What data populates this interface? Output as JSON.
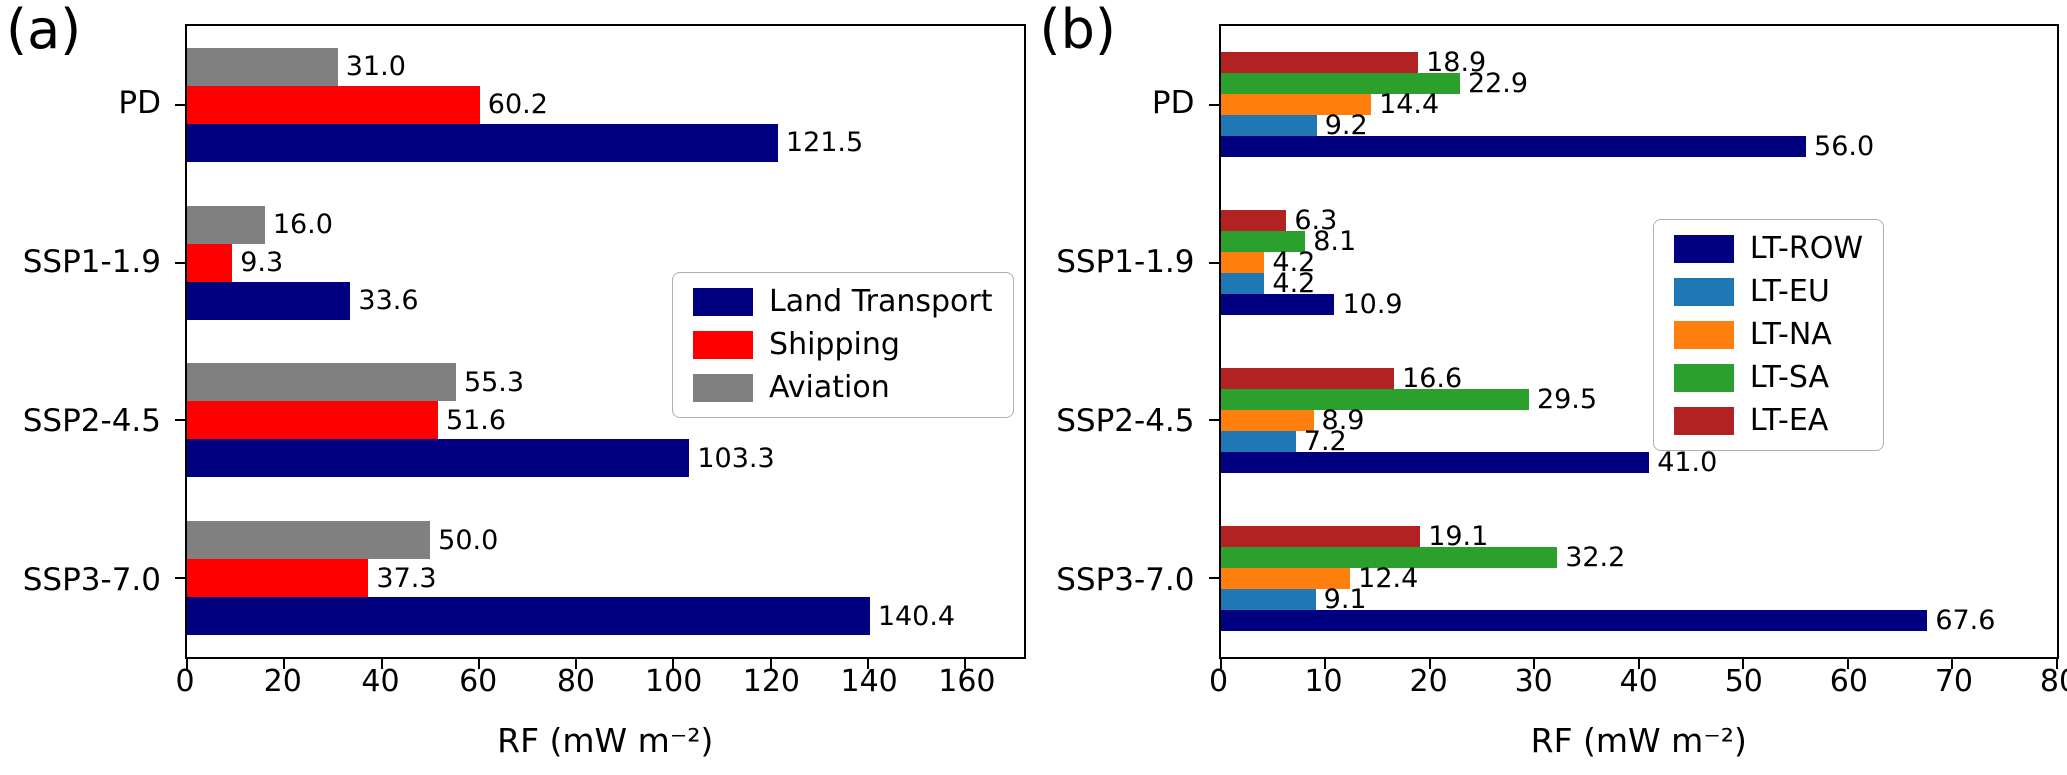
{
  "chart_data": [
    {
      "type": "bar",
      "orientation": "horizontal",
      "panel_label": "(a)",
      "xlabel": "RF (mW m⁻²)",
      "xlim": [
        0,
        172
      ],
      "xticks": [
        0,
        20,
        40,
        60,
        80,
        100,
        120,
        140,
        160
      ],
      "grid": false,
      "categories": [
        "PD",
        "SSP1-1.9",
        "SSP2-4.5",
        "SSP3-7.0"
      ],
      "series": [
        {
          "name": "Aviation",
          "color": "#808080",
          "values": [
            31.0,
            16.0,
            55.3,
            50.0
          ]
        },
        {
          "name": "Shipping",
          "color": "#ff0000",
          "values": [
            60.2,
            9.3,
            51.6,
            37.3
          ]
        },
        {
          "name": "Land Transport",
          "color": "#000080",
          "values": [
            121.5,
            33.6,
            103.3,
            140.4
          ]
        }
      ],
      "legend_position": "center-right-inside",
      "legend": [
        {
          "label": "Land Transport",
          "color": "#000080"
        },
        {
          "label": "Shipping",
          "color": "#ff0000"
        },
        {
          "label": "Aviation",
          "color": "#808080"
        }
      ]
    },
    {
      "type": "bar",
      "orientation": "horizontal",
      "panel_label": "(b)",
      "xlabel": "RF (mW m⁻²)",
      "xlim": [
        0,
        80
      ],
      "xticks": [
        0,
        10,
        20,
        30,
        40,
        50,
        60,
        70,
        80
      ],
      "grid": false,
      "categories": [
        "PD",
        "SSP1-1.9",
        "SSP2-4.5",
        "SSP3-7.0"
      ],
      "series": [
        {
          "name": "LT-EA",
          "color": "#b22222",
          "values": [
            18.9,
            6.3,
            16.6,
            19.1
          ]
        },
        {
          "name": "LT-SA",
          "color": "#2ca02c",
          "values": [
            22.9,
            8.1,
            29.5,
            32.2
          ]
        },
        {
          "name": "LT-NA",
          "color": "#ff7f0e",
          "values": [
            14.4,
            4.2,
            8.9,
            12.4
          ]
        },
        {
          "name": "LT-EU",
          "color": "#1f77b4",
          "values": [
            9.2,
            4.2,
            7.2,
            9.1
          ]
        },
        {
          "name": "LT-ROW",
          "color": "#000080",
          "values": [
            56.0,
            10.9,
            41.0,
            67.6
          ]
        }
      ],
      "legend_position": "upper-right-inside",
      "legend": [
        {
          "label": "LT-ROW",
          "color": "#000080"
        },
        {
          "label": "LT-EU",
          "color": "#1f77b4"
        },
        {
          "label": "LT-NA",
          "color": "#ff7f0e"
        },
        {
          "label": "LT-SA",
          "color": "#2ca02c"
        },
        {
          "label": "LT-EA",
          "color": "#b22222"
        }
      ]
    }
  ]
}
